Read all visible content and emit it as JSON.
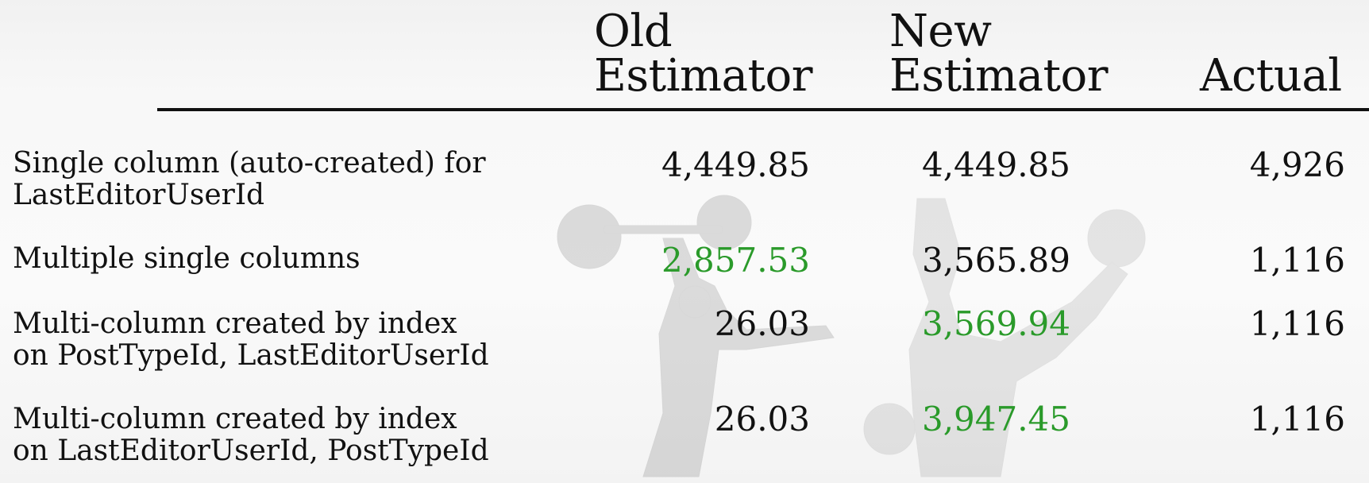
{
  "columns": {
    "old": [
      "Old",
      "Estimator"
    ],
    "new": [
      "New",
      "Estimator"
    ],
    "actual": "Actual"
  },
  "rows": [
    {
      "label": [
        "Single column (auto-created) for",
        "LastEditorUserId"
      ],
      "old": "4,449.85",
      "new": "4,449.85",
      "actual": "4,926",
      "highlight": null
    },
    {
      "label": [
        "Multiple single columns",
        ""
      ],
      "old": "2,857.53",
      "new": "3,565.89",
      "actual": "1,116",
      "highlight": "old"
    },
    {
      "label": [
        "Multi-column created by index",
        "on PostTypeId, LastEditorUserId"
      ],
      "old": "26.03",
      "new": "3,569.94",
      "actual": "1,116",
      "highlight": "new"
    },
    {
      "label": [
        "Multi-column created by index",
        "on LastEditorUserId, PostTypeId"
      ],
      "old": "26.03",
      "new": "3,947.45",
      "actual": "1,116",
      "highlight": "new"
    }
  ],
  "colors": {
    "highlight": "#2a9a2a",
    "text": "#111111"
  }
}
